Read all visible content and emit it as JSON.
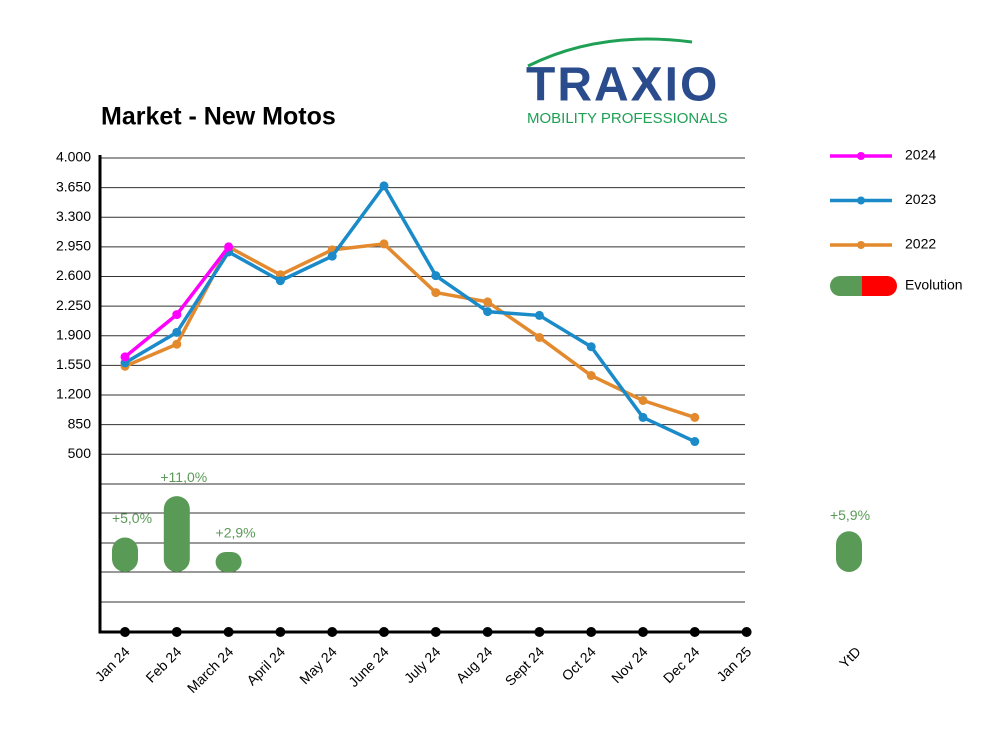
{
  "chart_data": {
    "type": "line",
    "title": "Market - New Motos",
    "categories": [
      "Jan 24",
      "Feb 24",
      "March 24",
      "April 24",
      "May 24",
      "June 24",
      "July 24",
      "Aug 24",
      "Sept 24",
      "Oct 24",
      "Nov 24",
      "Dec 24",
      "Jan 25"
    ],
    "series": [
      {
        "name": "2024",
        "color": "#ff00ff",
        "values": [
          1650,
          2150,
          2950,
          null,
          null,
          null,
          null,
          null,
          null,
          null,
          null,
          null,
          null
        ]
      },
      {
        "name": "2023",
        "color": "#1a8ac9",
        "values": [
          1580,
          1940,
          2890,
          2550,
          2840,
          3670,
          2610,
          2185,
          2140,
          1770,
          935,
          650,
          null
        ]
      },
      {
        "name": "2022",
        "color": "#e38a2e",
        "values": [
          1540,
          1800,
          2950,
          2620,
          2915,
          2985,
          2410,
          2300,
          1880,
          1430,
          1135,
          935,
          null
        ]
      }
    ],
    "ylim": [
      -1600,
      4000
    ],
    "yticks": [
      {
        "value": 500,
        "label": "500"
      },
      {
        "value": 850,
        "label": "850"
      },
      {
        "value": 1200,
        "label": "1.200"
      },
      {
        "value": 1550,
        "label": "1.550"
      },
      {
        "value": 1900,
        "label": "1.900"
      },
      {
        "value": 2250,
        "label": "2.250"
      },
      {
        "value": 2600,
        "label": "2.600"
      },
      {
        "value": 2950,
        "label": "2.950"
      },
      {
        "value": 3300,
        "label": "3.300"
      },
      {
        "value": 3650,
        "label": "3.650"
      },
      {
        "value": 4000,
        "label": "4.000"
      }
    ],
    "grid": true,
    "legend": "right",
    "evolution": {
      "name": "Evolution",
      "colors": [
        "#5a9a57",
        "#ff0000"
      ],
      "ylim": [
        -8.7,
        60
      ],
      "values": [
        5.0,
        11.0,
        2.9,
        null,
        null,
        null,
        null,
        null,
        null,
        null,
        null,
        null,
        null
      ],
      "value_labels": [
        "+5,0%",
        "+11,0%",
        "+2,9%",
        null,
        null,
        null,
        null,
        null,
        null,
        null,
        null,
        null,
        null
      ],
      "ytd_label": "YtD",
      "ytd_value": 5.9,
      "ytd_value_label": "+5,9%"
    }
  },
  "logo": {
    "name": "TRAXIO",
    "tagline": "MOBILITY PROFESSIONALS"
  }
}
